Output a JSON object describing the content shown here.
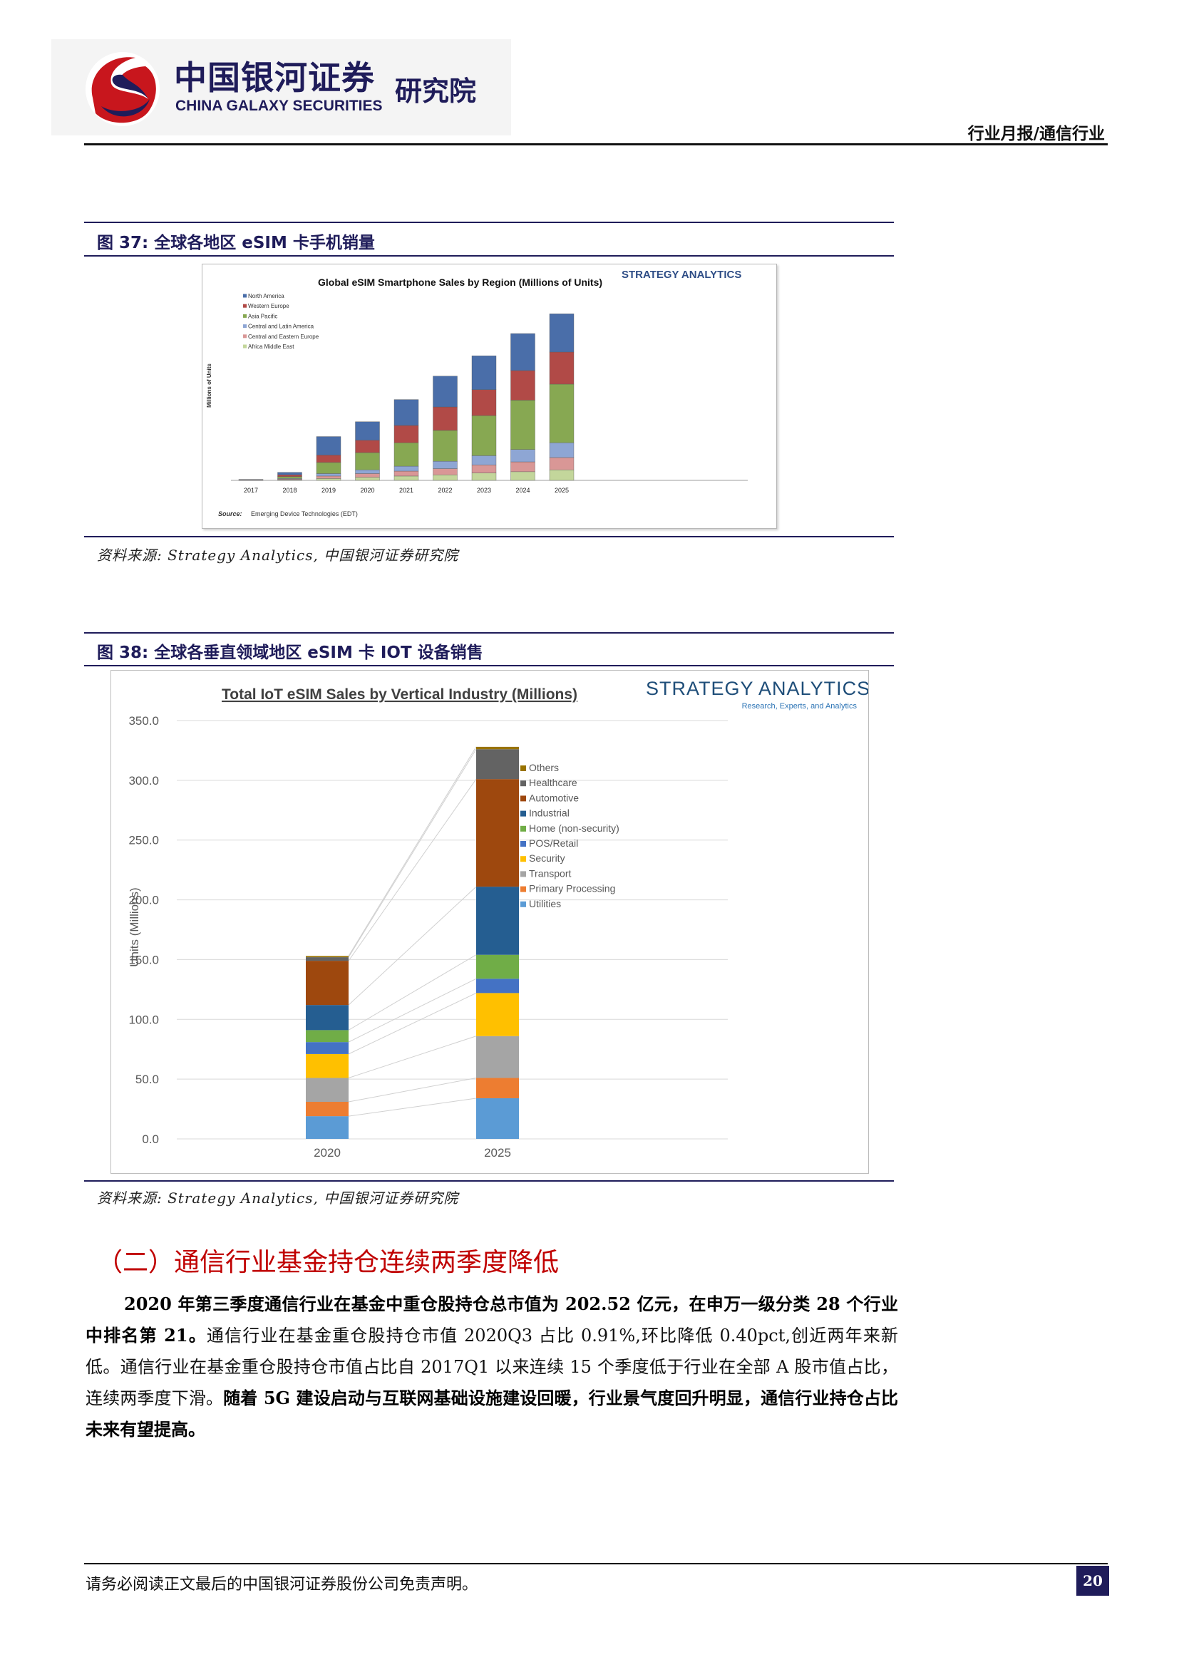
{
  "header": {
    "logo_cn": "中国银河证券",
    "logo_en": "CHINA GALAXY SECURITIES",
    "logo_inst": "研究院",
    "report_type": "行业月报/通信行业"
  },
  "figure37": {
    "title": "图 37: 全球各地区 eSIM 卡手机销量",
    "source": "资料来源: Strategy Analytics, 中国银河证券研究院"
  },
  "figure38": {
    "title": "图 38: 全球各垂直领域地区 eSIM 卡 IOT 设备销售",
    "source": "资料来源: Strategy Analytics, 中国银河证券研究院"
  },
  "section": {
    "title": "（二）通信行业基金持仓连续两季度降低"
  },
  "paragraph": {
    "b1": "2020 年第三季度通信行业在基金中重仓股持仓总市值为 202.52 亿元，在申万一级分类 28 个行业中排名第 21。",
    "t1": "通信行业在基金重仓股持仓市值 2020Q3 占比 0.91%,环比降低 0.40pct,创近两年来新低。通信行业在基金重仓股持仓市值占比自 2017Q1 以来连续 15 个季度低于行业在全部 A 股市值占比，连续两季度下滑。",
    "b2": "随着 5G 建设启动与互联网基础设施建设回暖，行业景气度回升明显，通信行业持仓占比未来有望提高。"
  },
  "footer": {
    "disclaimer": "请务必阅读正文最后的中国银河证券股份公司免责声明。",
    "page": "20"
  },
  "chart_data": [
    {
      "type": "bar",
      "stacked": true,
      "title": "Global eSIM Smartphone Sales by Region (Millions of Units)",
      "brand": "STRATEGY ANALYTICS",
      "ylabel": "Millions of Units",
      "source_label": "Source:",
      "source_text": "Emerging Device Technologies (EDT)",
      "categories": [
        "2017",
        "2018",
        "2019",
        "2020",
        "2021",
        "2022",
        "2023",
        "2024",
        "2025"
      ],
      "ylim": [
        0,
        290
      ],
      "series": [
        {
          "name": "North America",
          "color": "#4a6ea9",
          "values": [
            0.5,
            4,
            30,
            30,
            42,
            50,
            55,
            60,
            62
          ]
        },
        {
          "name": "Western Europe",
          "color": "#b14a47",
          "values": [
            0.5,
            3,
            12,
            20,
            28,
            38,
            42,
            48,
            52
          ]
        },
        {
          "name": "Asia Pacific",
          "color": "#87a852",
          "values": [
            0.5,
            3,
            18,
            28,
            38,
            50,
            65,
            80,
            95
          ]
        },
        {
          "name": "Central and Latin America",
          "color": "#8ea6d4",
          "values": [
            0,
            1,
            4,
            6,
            8,
            12,
            15,
            20,
            24
          ]
        },
        {
          "name": "Central and Eastern Europe",
          "color": "#d99796",
          "values": [
            0,
            1,
            4,
            6,
            8,
            10,
            13,
            16,
            20
          ]
        },
        {
          "name": "Africa Middle East",
          "color": "#c3d69b",
          "values": [
            0,
            1,
            3,
            5,
            7,
            9,
            12,
            14,
            17
          ]
        }
      ]
    },
    {
      "type": "bar",
      "stacked": true,
      "title": "Total IoT eSIM Sales by Vertical Industry (Millions)",
      "brand": "STRATEGY ANALYTICS",
      "brand_sub": "Research, Experts, and Analytics",
      "ylabel": "Units (Millions)",
      "categories": [
        "2020",
        "2025"
      ],
      "ylim": [
        0,
        350
      ],
      "yticks": [
        "0.0",
        "50.0",
        "100.0",
        "150.0",
        "200.0",
        "250.0",
        "300.0",
        "350.0"
      ],
      "series": [
        {
          "name": "Utilities",
          "color": "#5b9bd5",
          "values": [
            19,
            34
          ]
        },
        {
          "name": "Primary Processing",
          "color": "#ed7d31",
          "values": [
            12,
            17
          ]
        },
        {
          "name": "Transport",
          "color": "#a5a5a5",
          "values": [
            20,
            35
          ]
        },
        {
          "name": "Security",
          "color": "#ffc000",
          "values": [
            20,
            36
          ]
        },
        {
          "name": "POS/Retail",
          "color": "#4472c4",
          "values": [
            10,
            12
          ]
        },
        {
          "name": "Home (non-security)",
          "color": "#70ad47",
          "values": [
            10,
            20
          ]
        },
        {
          "name": "Industrial",
          "color": "#255e91",
          "values": [
            21,
            57
          ]
        },
        {
          "name": "Automotive",
          "color": "#9e480e",
          "values": [
            37,
            90
          ]
        },
        {
          "name": "Healthcare",
          "color": "#636363",
          "values": [
            3,
            25
          ]
        },
        {
          "name": "Others",
          "color": "#997300",
          "values": [
            1,
            2
          ]
        }
      ]
    }
  ]
}
